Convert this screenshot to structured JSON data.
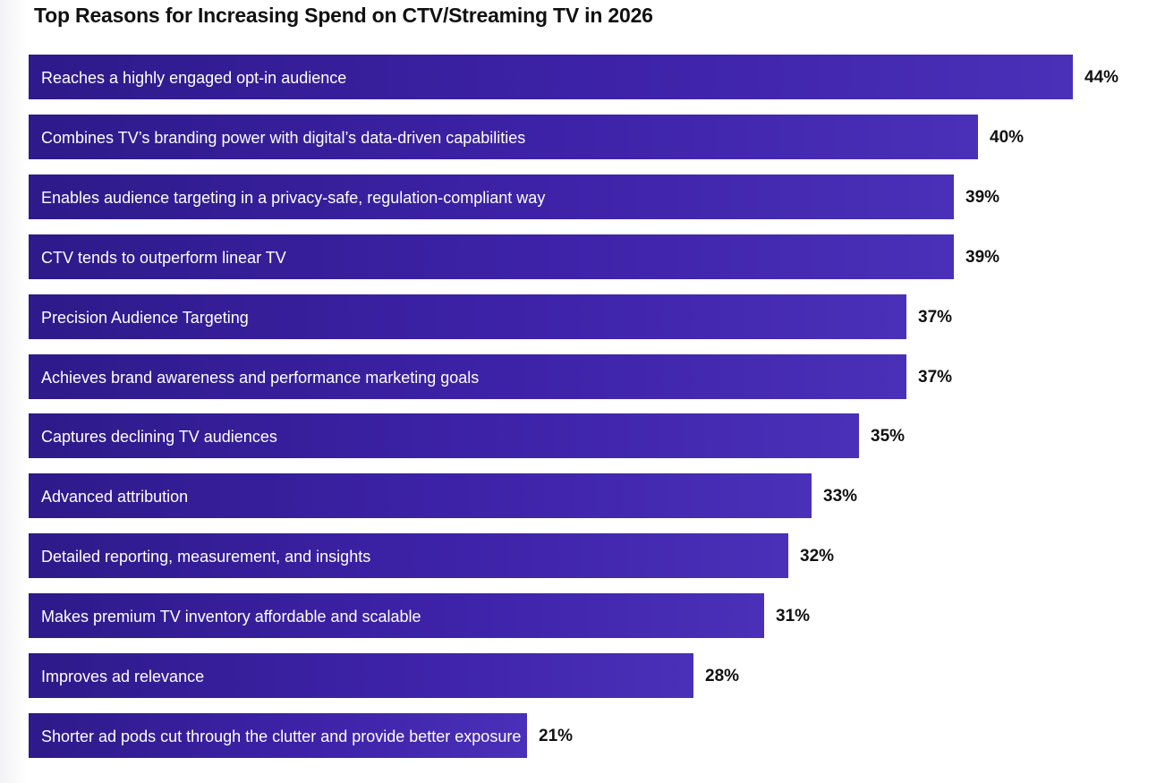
{
  "chart_data": {
    "type": "bar",
    "orientation": "horizontal",
    "title": "Top Reasons for Increasing Spend on CTV/Streaming TV in 2026",
    "xlabel": "",
    "ylabel": "",
    "xlim": [
      0,
      44
    ],
    "unit": "%",
    "grid": false,
    "categories": [
      "Reaches a highly engaged opt-in audience",
      "Combines TV’s branding power with digital’s data-driven capabilities",
      "Enables audience targeting in a privacy-safe, regulation-compliant way",
      "CTV tends to outperform linear TV",
      "Precision Audience Targeting",
      "Achieves brand awareness and performance marketing goals",
      "Captures declining TV audiences",
      "Advanced attribution",
      "Detailed reporting, measurement, and insights",
      "Makes premium TV inventory affordable and scalable",
      "Improves ad relevance",
      "Shorter ad pods cut through the clutter and provide better exposure"
    ],
    "values": [
      44,
      40,
      39,
      39,
      37,
      37,
      35,
      33,
      32,
      31,
      28,
      21
    ],
    "value_labels": [
      "44%",
      "40%",
      "39%",
      "39%",
      "37%",
      "37%",
      "35%",
      "33%",
      "32%",
      "31%",
      "28%",
      "21%"
    ],
    "colors": {
      "bar_start": "#2e1a8a",
      "bar_end": "#4a30b8",
      "bar_text": "#ffffff",
      "value_text": "#111111"
    }
  }
}
